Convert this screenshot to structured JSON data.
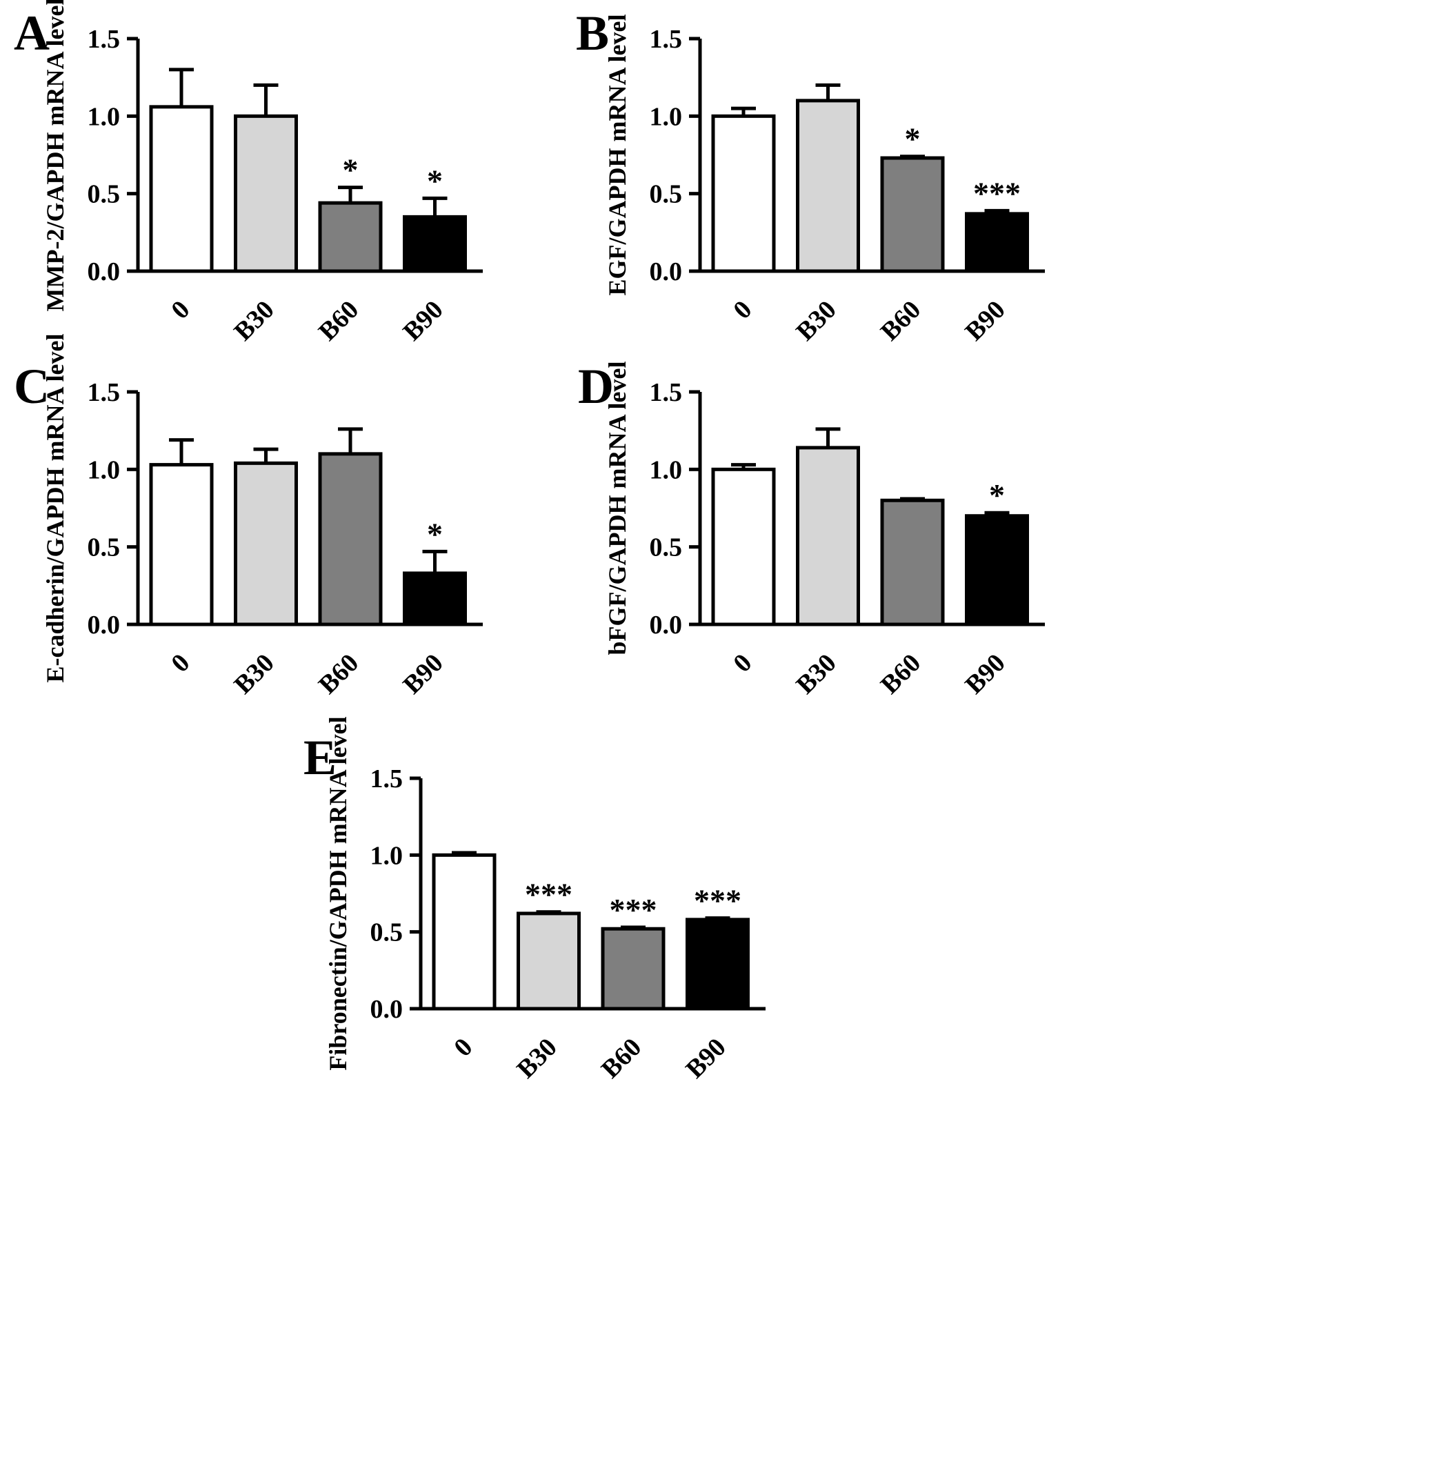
{
  "figure": {
    "bar_colors": [
      "#ffffff",
      "#d6d6d6",
      "#7f7f7f",
      "#000000"
    ],
    "axis_color": "#000000",
    "panel_letters": [
      "A",
      "B",
      "C",
      "D",
      "E"
    ]
  },
  "chart_data": [
    {
      "type": "bar",
      "panel": "A",
      "title": "",
      "xlabel": "",
      "ylabel": "MMP-2/GAPDH mRNA level",
      "categories": [
        "0",
        "B30",
        "B60",
        "B90"
      ],
      "values": [
        1.06,
        1.0,
        0.44,
        0.35
      ],
      "errors": [
        0.24,
        0.2,
        0.1,
        0.12
      ],
      "significance": [
        "",
        "",
        "*",
        "*"
      ],
      "ylim": [
        0,
        1.5
      ],
      "yticks": [
        0,
        0.5,
        1,
        1.5
      ],
      "grid": false,
      "legend": "none"
    },
    {
      "type": "bar",
      "panel": "B",
      "title": "",
      "xlabel": "",
      "ylabel": "EGF/GAPDH mRNA level",
      "categories": [
        "0",
        "B30",
        "B60",
        "B90"
      ],
      "values": [
        1.0,
        1.1,
        0.73,
        0.37
      ],
      "errors": [
        0.05,
        0.1,
        0.01,
        0.02
      ],
      "significance": [
        "",
        "",
        "*",
        "***"
      ],
      "ylim": [
        0,
        1.5
      ],
      "yticks": [
        0,
        0.5,
        1,
        1.5
      ],
      "grid": false,
      "legend": "none"
    },
    {
      "type": "bar",
      "panel": "C",
      "title": "",
      "xlabel": "",
      "ylabel": "E-cadherin/GAPDH mRNA level",
      "categories": [
        "0",
        "B30",
        "B60",
        "B90"
      ],
      "values": [
        1.03,
        1.04,
        1.1,
        0.33
      ],
      "errors": [
        0.16,
        0.09,
        0.16,
        0.14
      ],
      "significance": [
        "",
        "",
        "",
        "*"
      ],
      "ylim": [
        0,
        1.5
      ],
      "yticks": [
        0,
        0.5,
        1,
        1.5
      ],
      "grid": false,
      "legend": "none"
    },
    {
      "type": "bar",
      "panel": "D",
      "title": "",
      "xlabel": "",
      "ylabel": "bFGF/GAPDH mRNA level",
      "categories": [
        "0",
        "B30",
        "B60",
        "B90"
      ],
      "values": [
        1.0,
        1.14,
        0.8,
        0.7
      ],
      "errors": [
        0.03,
        0.12,
        0.01,
        0.02
      ],
      "significance": [
        "",
        "",
        "",
        "*"
      ],
      "ylim": [
        0,
        1.5
      ],
      "yticks": [
        0,
        0.5,
        1,
        1.5
      ],
      "grid": false,
      "legend": "none"
    },
    {
      "type": "bar",
      "panel": "E",
      "title": "",
      "xlabel": "",
      "ylabel": "Fibronectin/GAPDH mRNA level",
      "categories": [
        "0",
        "B30",
        "B60",
        "B90"
      ],
      "values": [
        1.0,
        0.62,
        0.52,
        0.58
      ],
      "errors": [
        0.015,
        0.01,
        0.01,
        0.01
      ],
      "significance": [
        "",
        "***",
        "***",
        "***"
      ],
      "ylim": [
        0,
        1.5
      ],
      "yticks": [
        0,
        0.5,
        1,
        1.5
      ],
      "grid": false,
      "legend": "none"
    }
  ]
}
